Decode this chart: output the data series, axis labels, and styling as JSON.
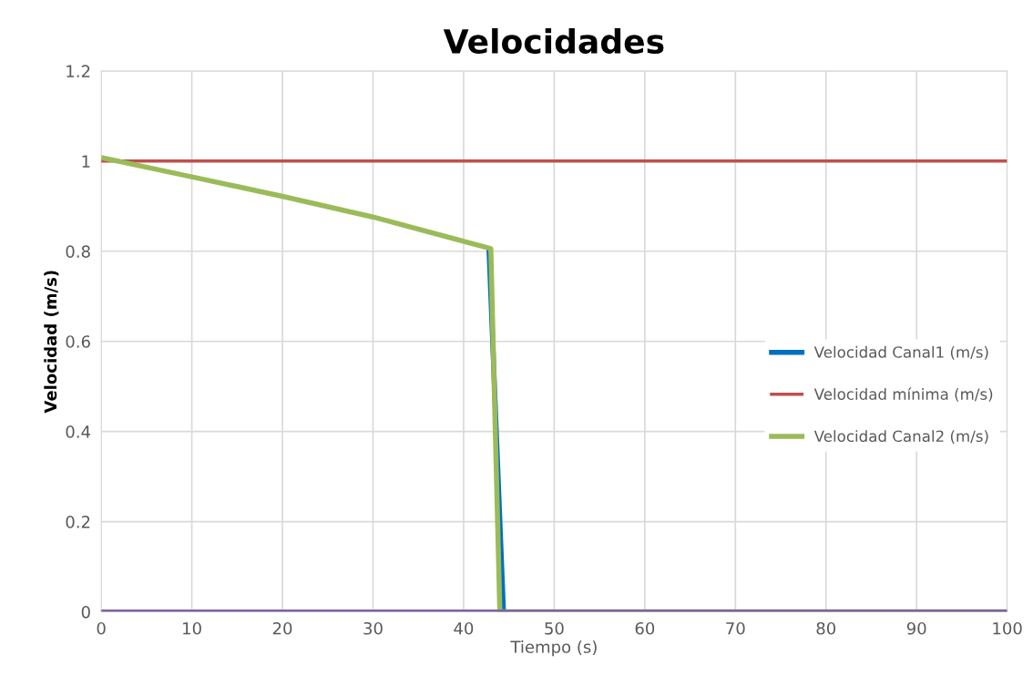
{
  "chart_data": {
    "type": "line",
    "title": "Velocidades",
    "xlabel": "Tiempo (s)",
    "ylabel": "Velocidad (m/s)",
    "series": [
      {
        "name": "Velocidad Canal1 (m/s)",
        "color": "#0070c0",
        "x": [
          42.8,
          44.4
        ],
        "values": [
          0.806,
          0
        ]
      },
      {
        "name": "Velocidad mínima (m/s)",
        "color": "#c0504d",
        "x": [
          0,
          100
        ],
        "values": [
          1,
          1
        ]
      },
      {
        "name": "Velocidad Canal2 (m/s)",
        "color": "#9bbb59",
        "x": [
          0,
          10,
          20,
          30,
          43,
          44,
          100
        ],
        "values": [
          1.008,
          0.965,
          0.922,
          0.876,
          0.806,
          0,
          0
        ]
      },
      {
        "color": "#8064a2",
        "x": [
          0,
          100
        ],
        "values": [
          0,
          0
        ]
      }
    ],
    "xlim": [
      0,
      100
    ],
    "xticks": [
      0,
      10,
      20,
      30,
      40,
      50,
      60,
      70,
      80,
      90,
      100
    ],
    "ylim": [
      0,
      1.2
    ],
    "yticks": [
      0,
      0.2,
      0.4,
      0.6,
      0.8,
      1,
      1.2
    ],
    "grid": true,
    "legend": "right",
    "marker": "none",
    "line_style": "solid"
  }
}
